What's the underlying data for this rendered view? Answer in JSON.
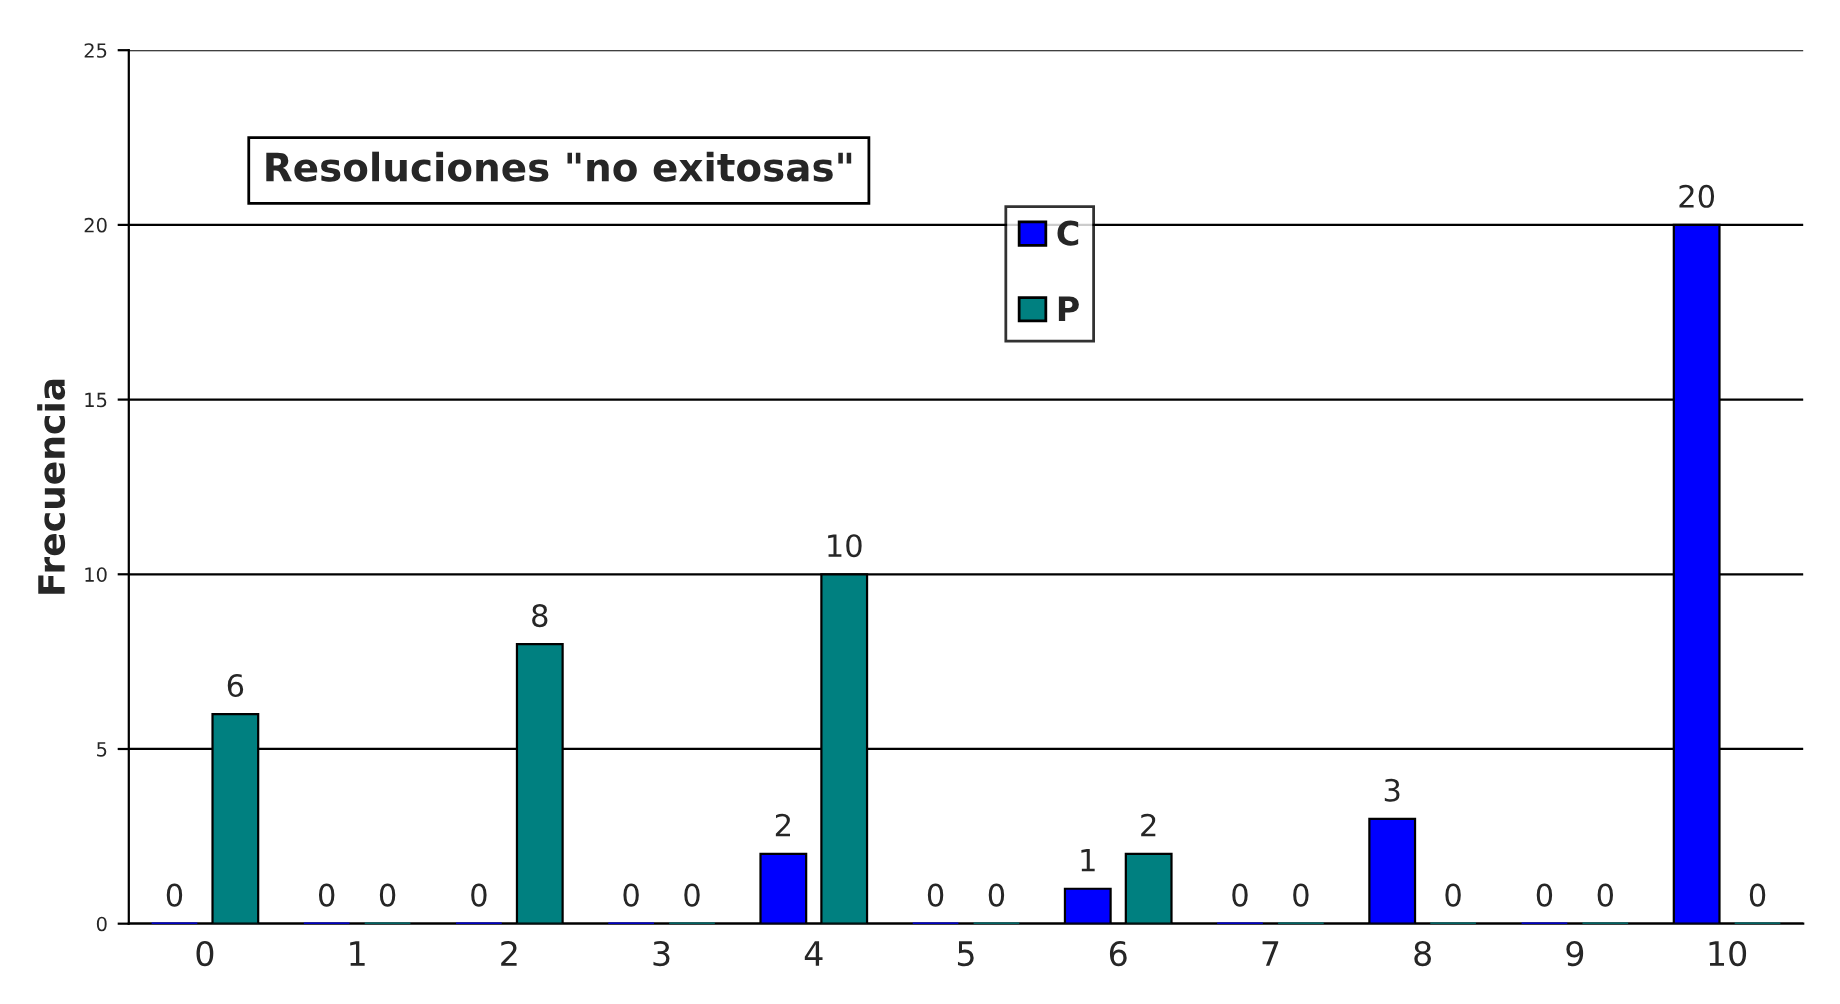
{
  "chart_data": {
    "type": "bar",
    "title": "Resoluciones \"no exitosas\"",
    "ylabel": "Frecuencia",
    "categories": [
      "0",
      "1",
      "2",
      "3",
      "4",
      "5",
      "6",
      "7",
      "8",
      "9",
      "10"
    ],
    "series": [
      {
        "name": "C",
        "color": "#0000ff",
        "values": [
          0,
          0,
          0,
          0,
          2,
          0,
          1,
          0,
          3,
          0,
          20
        ]
      },
      {
        "name": "P",
        "color": "#008080",
        "values": [
          6,
          0,
          8,
          0,
          10,
          0,
          2,
          0,
          0,
          0,
          0
        ]
      }
    ],
    "ylim": [
      0,
      25
    ],
    "yticks": [
      0,
      5,
      10,
      15,
      20,
      25
    ],
    "grid": "y",
    "legend": "top",
    "data_labels": true
  }
}
